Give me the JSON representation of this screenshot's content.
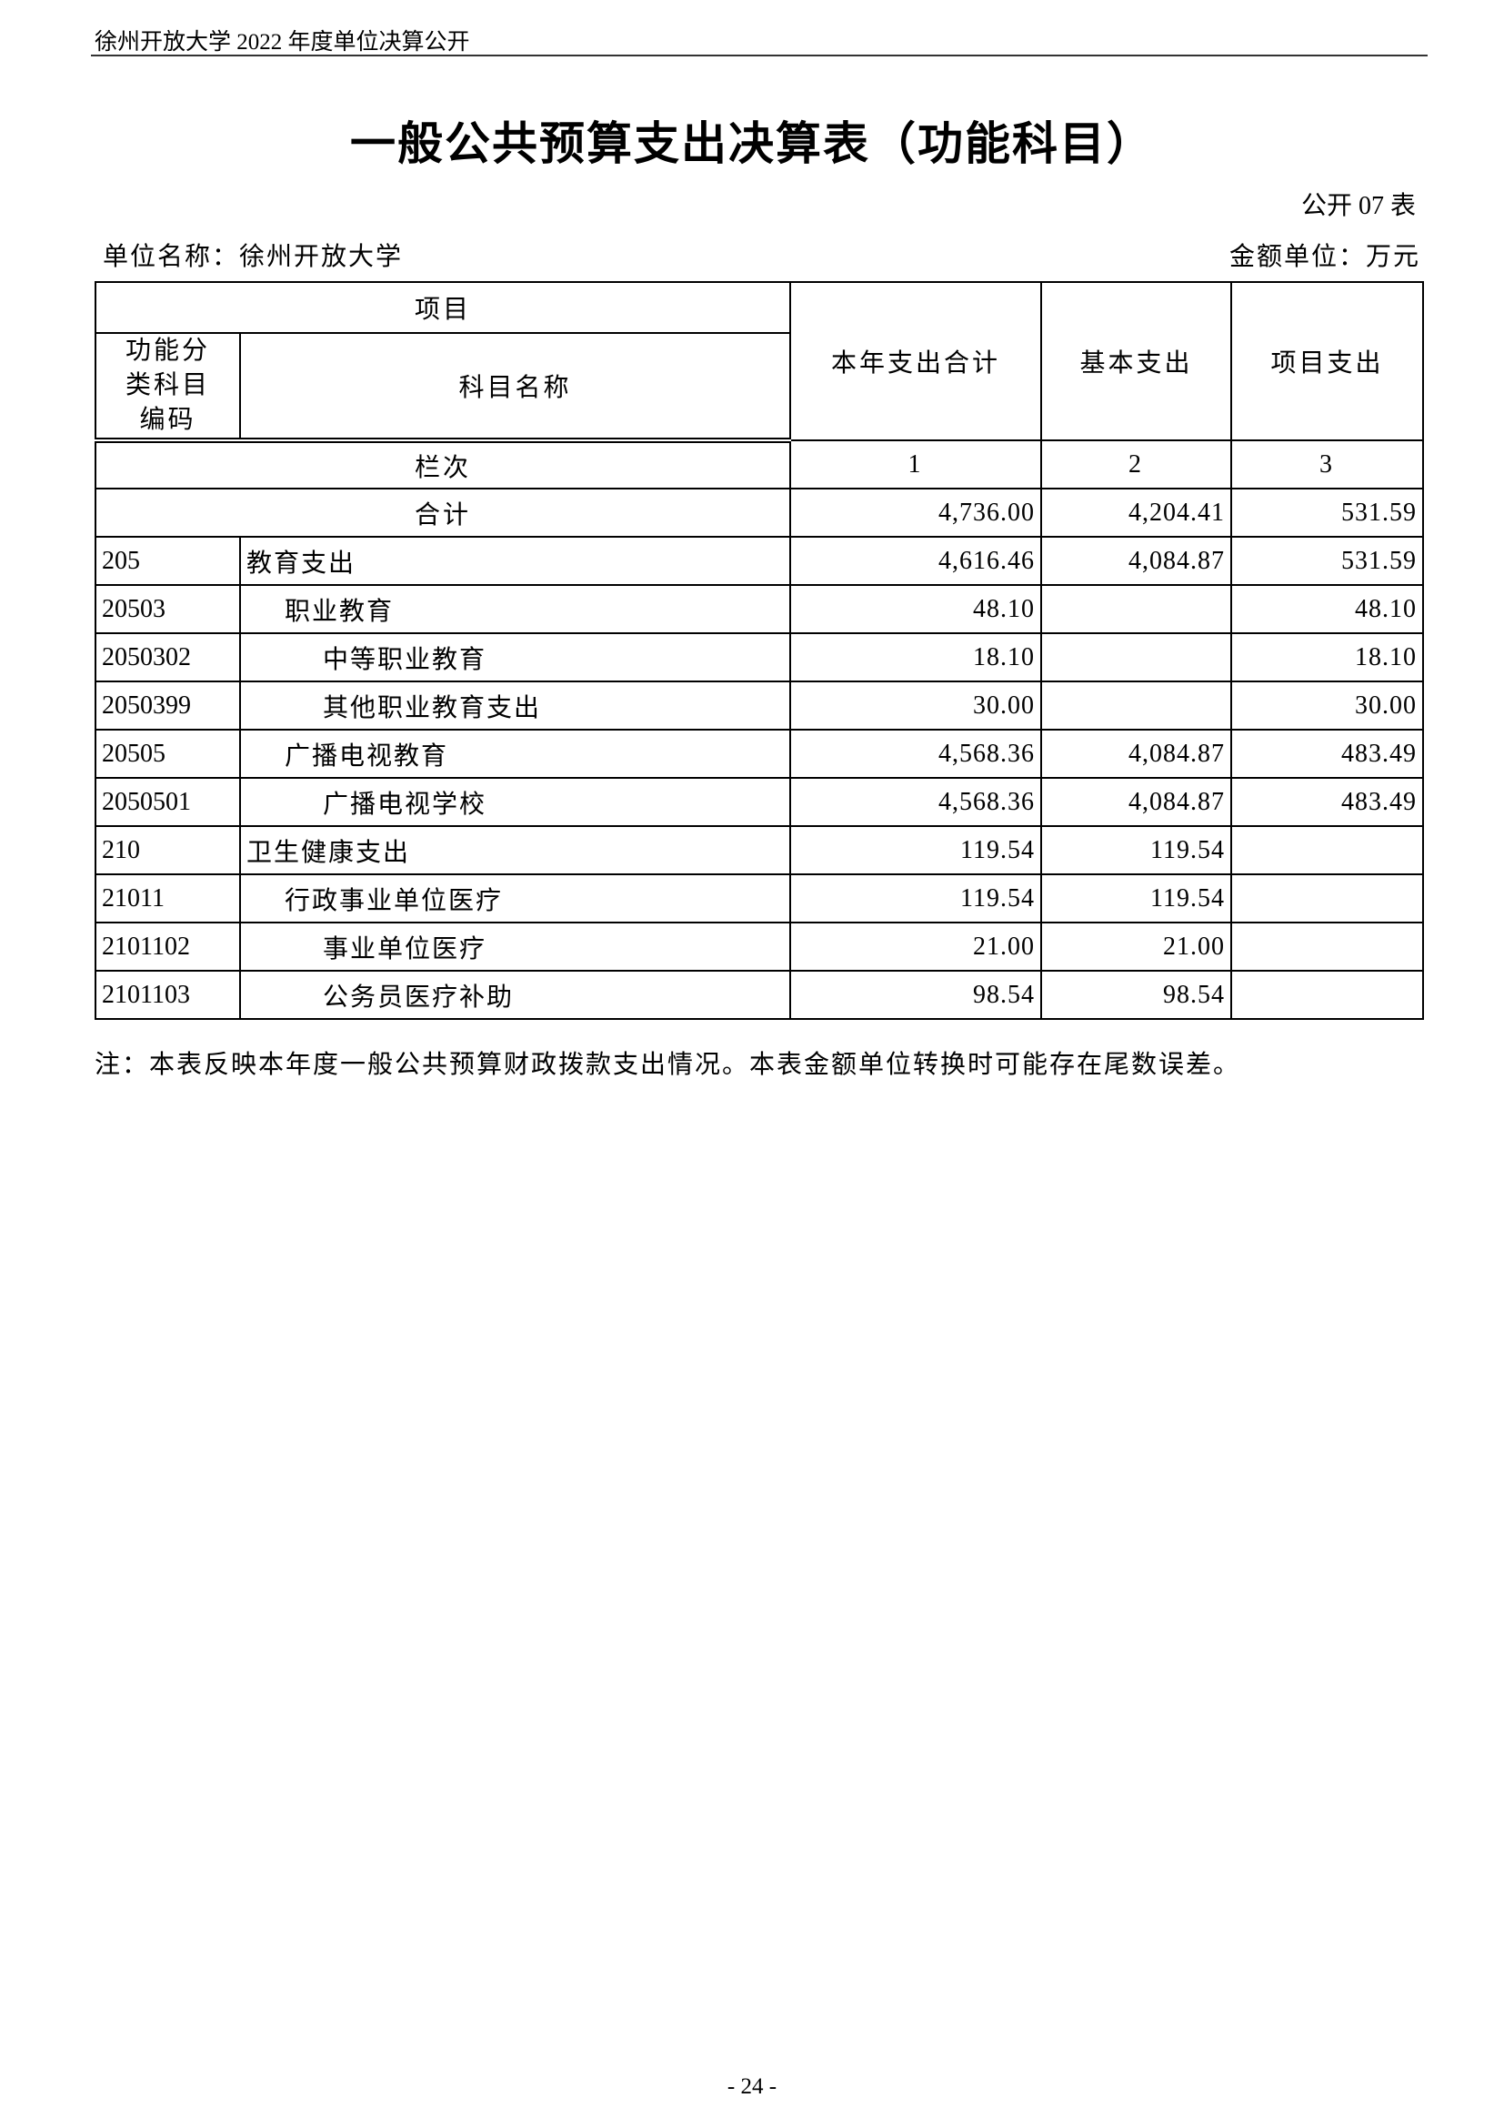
{
  "header": "徐州开放大学 2022 年度单位决算公开",
  "title": "一般公共预算支出决算表（功能科目）",
  "table_no": "公开 07 表",
  "unit_name": "单位名称：徐州开放大学",
  "amount_unit": "金额单位：万元",
  "table": {
    "headers": {
      "item": "项目",
      "code": "功能分类科目编码",
      "name": "科目名称",
      "total": "本年支出合计",
      "basic": "基本支出",
      "project": "项目支出"
    },
    "column_index": {
      "label": "栏次",
      "numbers": [
        "1",
        "2",
        "3"
      ]
    },
    "sum_row": {
      "label": "合计",
      "values": [
        "4,736.00",
        "4,204.41",
        "531.59"
      ]
    },
    "rows": [
      [
        "205",
        "教育支出",
        "4,616.46",
        "4,084.87",
        "531.59"
      ],
      [
        "20503",
        "职业教育",
        "48.10",
        null,
        "48.10"
      ],
      [
        "2050302",
        "中等职业教育",
        "18.10",
        null,
        "18.10"
      ],
      [
        "2050399",
        "其他职业教育支出",
        "30.00",
        null,
        "30.00"
      ],
      [
        "20505",
        "广播电视教育",
        "4,568.36",
        "4,084.87",
        "483.49"
      ],
      [
        "2050501",
        "广播电视学校",
        "4,568.36",
        "4,084.87",
        "483.49"
      ],
      [
        "210",
        "卫生健康支出",
        "119.54",
        "119.54",
        null
      ],
      [
        "21011",
        "行政事业单位医疗",
        "119.54",
        "119.54",
        null
      ],
      [
        "2101102",
        "事业单位医疗",
        "21.00",
        "21.00",
        null
      ],
      [
        "2101103",
        "公务员医疗补助",
        "98.54",
        "98.54",
        null
      ]
    ]
  },
  "note": "注：本表反映本年度一般公共预算财政拨款支出情况。本表金额单位转换时可能存在尾数误差。",
  "page_number": "- 24 -"
}
